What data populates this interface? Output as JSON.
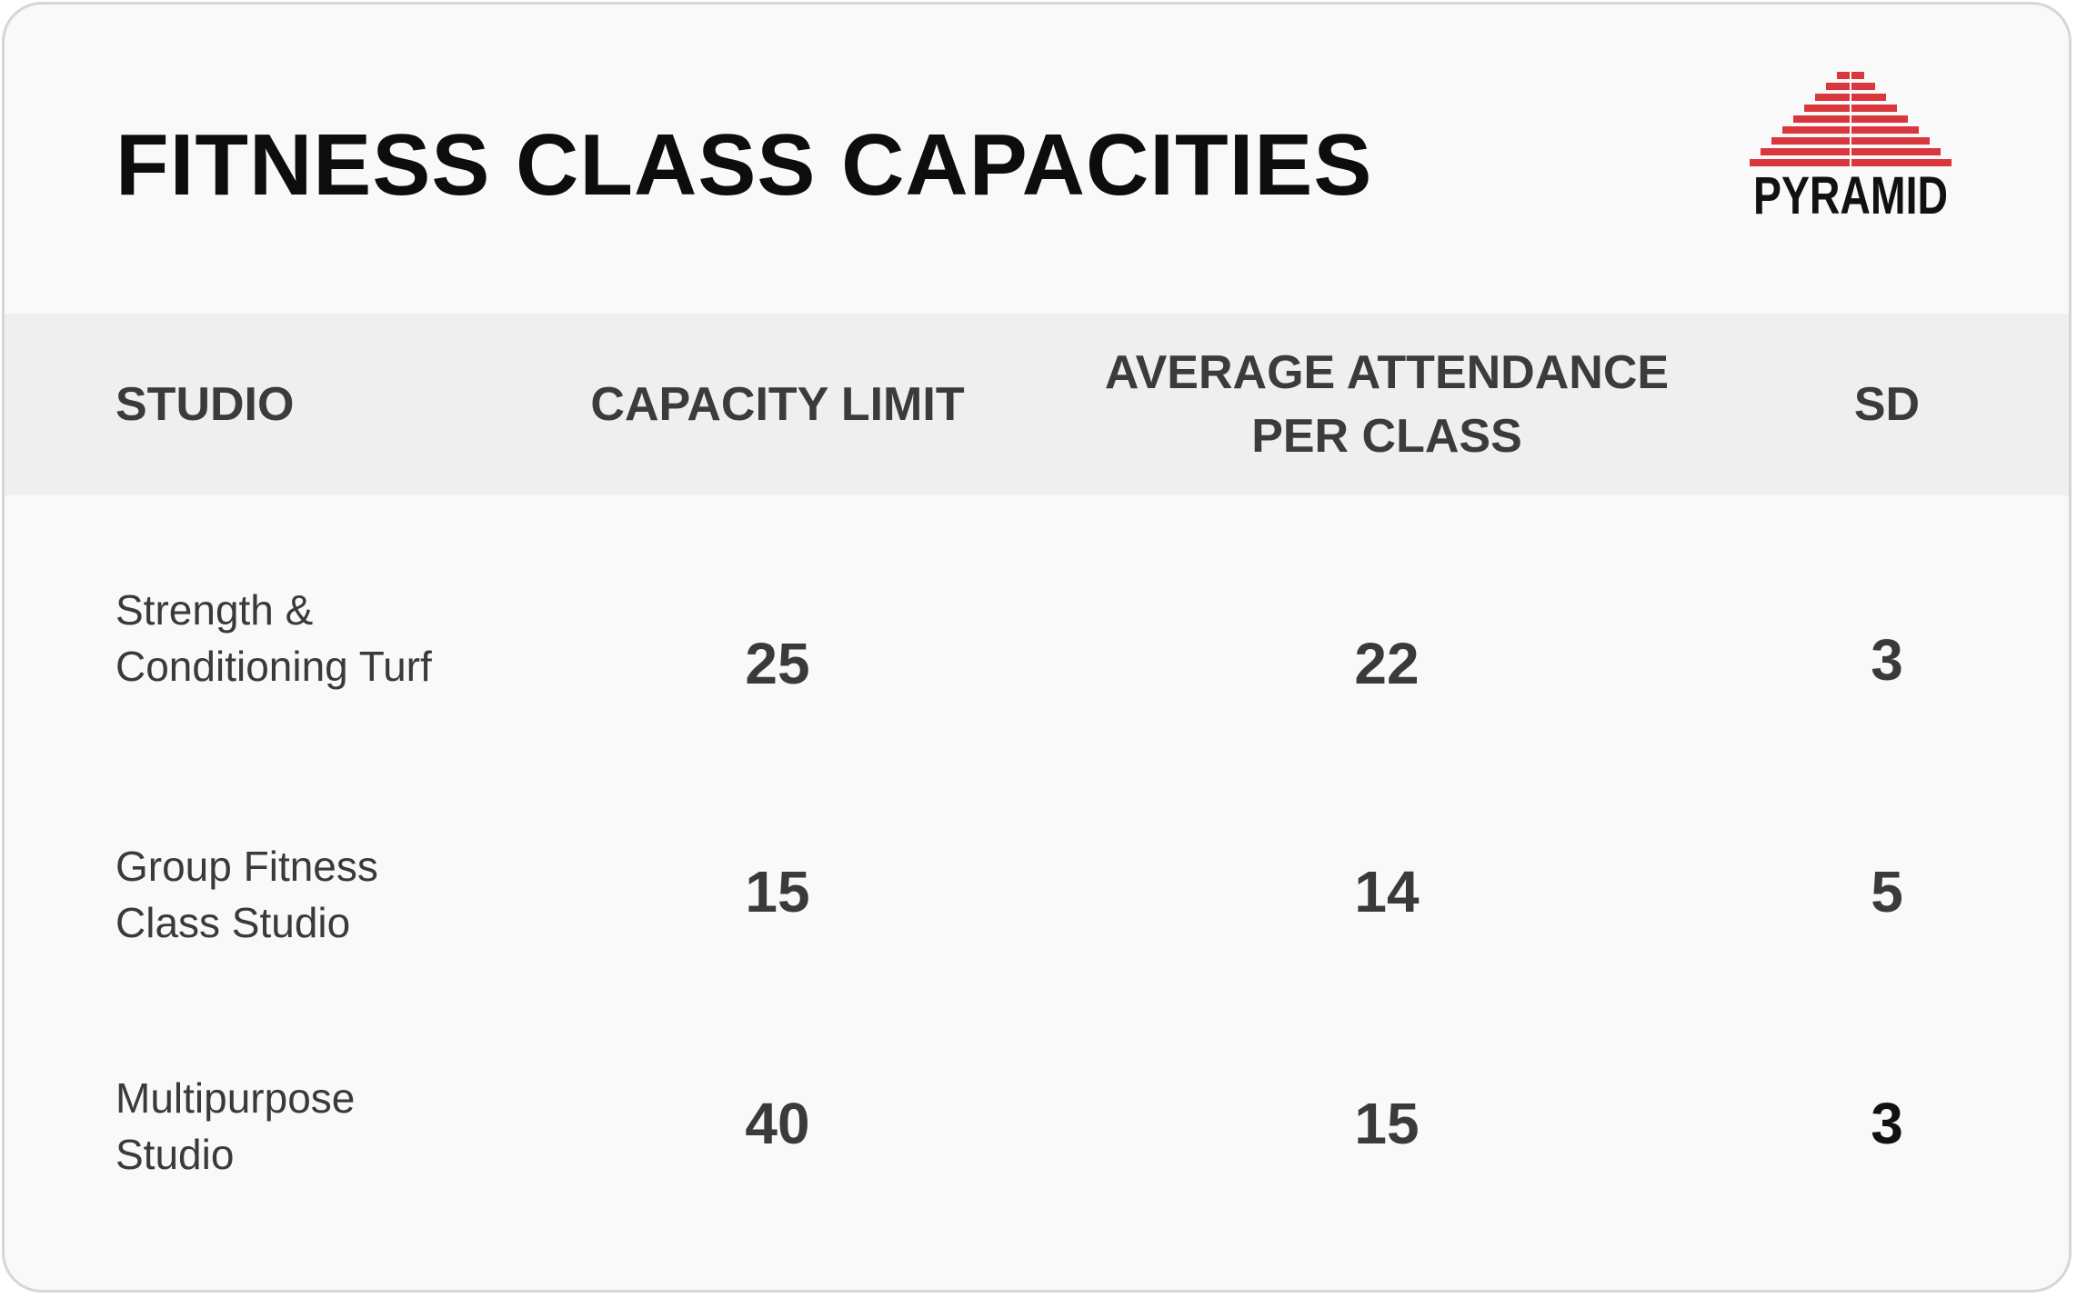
{
  "title": "FITNESS CLASS CAPACITIES",
  "logo": {
    "text": "PYRAMID",
    "accent_color": "#d9363e",
    "icon": "pyramid-logo-icon"
  },
  "table": {
    "headers": {
      "studio": "STUDIO",
      "capacity": "CAPACITY LIMIT",
      "average": "AVERAGE ATTENDANCE PER CLASS",
      "sd": "SD"
    },
    "rows": [
      {
        "studio": "Strength & Conditioning Turf",
        "capacity": "25",
        "average": "22",
        "sd": "3"
      },
      {
        "studio": "Group Fitness Class Studio",
        "capacity": "15",
        "average": "14",
        "sd": "5"
      },
      {
        "studio": "Multipurpose Studio",
        "capacity": "40",
        "average": "15",
        "sd": "3"
      }
    ]
  }
}
